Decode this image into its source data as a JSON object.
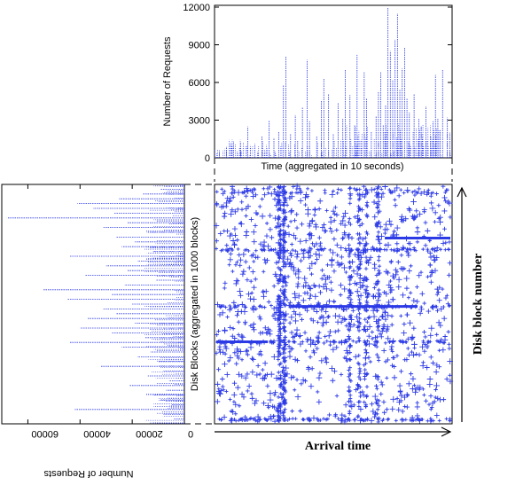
{
  "chart_data": [
    {
      "type": "line",
      "ylabel": "Number of Requests",
      "xlabel": "Time (aggregated in 10 seconds)",
      "ylim": [
        0,
        12000
      ],
      "yticks": [
        "0",
        "3000",
        "6000",
        "9000",
        "12000"
      ],
      "peaks": [
        {
          "x": 0.02,
          "y": 600
        },
        {
          "x": 0.05,
          "y": 900
        },
        {
          "x": 0.08,
          "y": 1300
        },
        {
          "x": 0.11,
          "y": 700
        },
        {
          "x": 0.14,
          "y": 2500
        },
        {
          "x": 0.17,
          "y": 1100
        },
        {
          "x": 0.2,
          "y": 1700
        },
        {
          "x": 0.23,
          "y": 3000
        },
        {
          "x": 0.25,
          "y": 1600
        },
        {
          "x": 0.27,
          "y": 2100
        },
        {
          "x": 0.29,
          "y": 5800
        },
        {
          "x": 0.3,
          "y": 8100
        },
        {
          "x": 0.32,
          "y": 1900
        },
        {
          "x": 0.34,
          "y": 3400
        },
        {
          "x": 0.35,
          "y": 1400
        },
        {
          "x": 0.37,
          "y": 4000
        },
        {
          "x": 0.39,
          "y": 7800
        },
        {
          "x": 0.4,
          "y": 2900
        },
        {
          "x": 0.43,
          "y": 1700
        },
        {
          "x": 0.45,
          "y": 4600
        },
        {
          "x": 0.46,
          "y": 6300
        },
        {
          "x": 0.48,
          "y": 5100
        },
        {
          "x": 0.5,
          "y": 1900
        },
        {
          "x": 0.52,
          "y": 4400
        },
        {
          "x": 0.54,
          "y": 3100
        },
        {
          "x": 0.55,
          "y": 7000
        },
        {
          "x": 0.57,
          "y": 5000
        },
        {
          "x": 0.59,
          "y": 2600
        },
        {
          "x": 0.6,
          "y": 8200
        },
        {
          "x": 0.63,
          "y": 6800
        },
        {
          "x": 0.64,
          "y": 4700
        },
        {
          "x": 0.66,
          "y": 2100
        },
        {
          "x": 0.68,
          "y": 3300
        },
        {
          "x": 0.69,
          "y": 5300
        },
        {
          "x": 0.7,
          "y": 6800
        },
        {
          "x": 0.71,
          "y": 2600
        },
        {
          "x": 0.72,
          "y": 4200
        },
        {
          "x": 0.73,
          "y": 12000
        },
        {
          "x": 0.74,
          "y": 8500
        },
        {
          "x": 0.75,
          "y": 6200
        },
        {
          "x": 0.76,
          "y": 9400
        },
        {
          "x": 0.77,
          "y": 11500
        },
        {
          "x": 0.78,
          "y": 5400
        },
        {
          "x": 0.79,
          "y": 7100
        },
        {
          "x": 0.8,
          "y": 8800
        },
        {
          "x": 0.81,
          "y": 4700
        },
        {
          "x": 0.82,
          "y": 3600
        },
        {
          "x": 0.84,
          "y": 5100
        },
        {
          "x": 0.86,
          "y": 3100
        },
        {
          "x": 0.87,
          "y": 2500
        },
        {
          "x": 0.89,
          "y": 4100
        },
        {
          "x": 0.91,
          "y": 1700
        },
        {
          "x": 0.92,
          "y": 2900
        },
        {
          "x": 0.93,
          "y": 6600
        },
        {
          "x": 0.94,
          "y": 3100
        },
        {
          "x": 0.95,
          "y": 2200
        },
        {
          "x": 0.96,
          "y": 7000
        },
        {
          "x": 0.98,
          "y": 3200
        },
        {
          "x": 0.99,
          "y": 2000
        }
      ]
    },
    {
      "type": "line",
      "orientation": "horizontal-bars-rotated",
      "xlabel": "Number of Requests",
      "ylabel": "Disk Blocks (aggregated in 1000 blocks)",
      "xlim": [
        0,
        70000
      ],
      "xticks": [
        "0",
        "20000",
        "40000",
        "60000"
      ],
      "peaks": [
        {
          "y": 0.02,
          "v": 9000
        },
        {
          "y": 0.04,
          "v": 16000
        },
        {
          "y": 0.06,
          "v": 25000
        },
        {
          "y": 0.08,
          "v": 41000
        },
        {
          "y": 0.1,
          "v": 35000
        },
        {
          "y": 0.12,
          "v": 27000
        },
        {
          "y": 0.14,
          "v": 68000
        },
        {
          "y": 0.16,
          "v": 22000
        },
        {
          "y": 0.18,
          "v": 31000
        },
        {
          "y": 0.2,
          "v": 14000
        },
        {
          "y": 0.22,
          "v": 26000
        },
        {
          "y": 0.24,
          "v": 19000
        },
        {
          "y": 0.26,
          "v": 24000
        },
        {
          "y": 0.28,
          "v": 12000
        },
        {
          "y": 0.3,
          "v": 44000
        },
        {
          "y": 0.32,
          "v": 18000
        },
        {
          "y": 0.34,
          "v": 30000
        },
        {
          "y": 0.36,
          "v": 22000
        },
        {
          "y": 0.38,
          "v": 38000
        },
        {
          "y": 0.4,
          "v": 11000
        },
        {
          "y": 0.42,
          "v": 23000
        },
        {
          "y": 0.44,
          "v": 54000
        },
        {
          "y": 0.46,
          "v": 28000
        },
        {
          "y": 0.48,
          "v": 45000
        },
        {
          "y": 0.5,
          "v": 20000
        },
        {
          "y": 0.52,
          "v": 31000
        },
        {
          "y": 0.54,
          "v": 26000
        },
        {
          "y": 0.56,
          "v": 37000
        },
        {
          "y": 0.58,
          "v": 19000
        },
        {
          "y": 0.6,
          "v": 40000
        },
        {
          "y": 0.62,
          "v": 28000
        },
        {
          "y": 0.64,
          "v": 15000
        },
        {
          "y": 0.66,
          "v": 44000
        },
        {
          "y": 0.68,
          "v": 24000
        },
        {
          "y": 0.7,
          "v": 13000
        },
        {
          "y": 0.72,
          "v": 18000
        },
        {
          "y": 0.74,
          "v": 10000
        },
        {
          "y": 0.76,
          "v": 32000
        },
        {
          "y": 0.78,
          "v": 8000
        },
        {
          "y": 0.8,
          "v": 14000
        },
        {
          "y": 0.82,
          "v": 6000
        },
        {
          "y": 0.84,
          "v": 21000
        },
        {
          "y": 0.86,
          "v": 7000
        },
        {
          "y": 0.88,
          "v": 12000
        },
        {
          "y": 0.9,
          "v": 9000
        },
        {
          "y": 0.92,
          "v": 5000
        },
        {
          "y": 0.94,
          "v": 42000
        },
        {
          "y": 0.96,
          "v": 8000
        },
        {
          "y": 0.98,
          "v": 4000
        }
      ]
    },
    {
      "type": "scatter",
      "xlabel": "Arrival time",
      "ylabel": "Disk block number",
      "dense_rows": [
        0.27,
        0.51,
        0.66,
        0.99
      ],
      "dense_cols": [
        0.27,
        0.29,
        0.57,
        0.61,
        0.64,
        0.69
      ],
      "segments": [
        {
          "x0": 0.0,
          "x1": 0.22,
          "y": 0.66
        },
        {
          "x0": 0.32,
          "x1": 0.86,
          "y": 0.51
        },
        {
          "x0": 0.72,
          "x1": 1.0,
          "y": 0.22
        }
      ]
    }
  ]
}
